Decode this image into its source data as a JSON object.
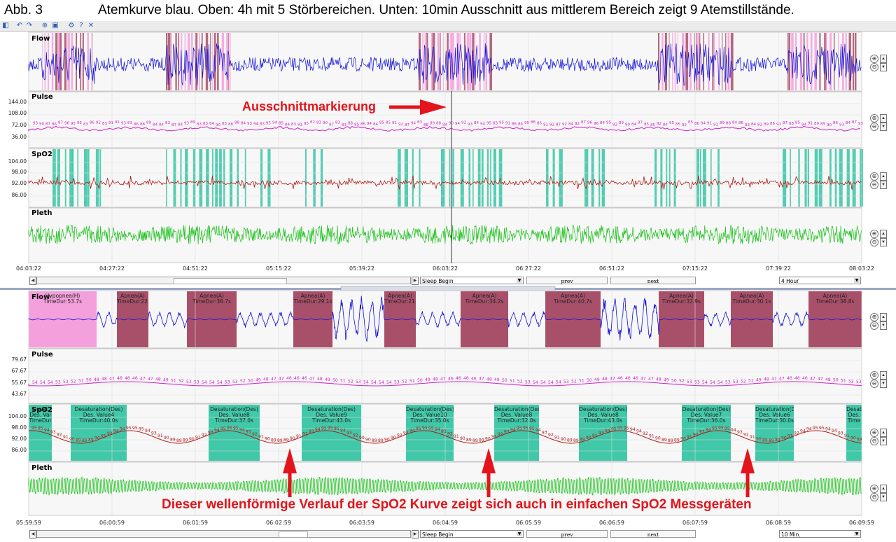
{
  "caption": {
    "fig": "Abb. 3",
    "text": "Atemkurve blau.  Oben: 4h mit 5 Störbereichen.   Unten: 10min Ausschnitt aus mittlerem Bereich zeigt 9 Atemstillstände."
  },
  "top_view": {
    "channels": {
      "flow": "Flow",
      "pulse": "Pulse",
      "spo2": "SpO2",
      "pleth": "Pleth"
    },
    "pulse_ticks": [
      "144.00",
      "108.00",
      "72.00",
      "36.00"
    ],
    "spo2_ticks": [
      "104.00",
      "98.00",
      "92.00",
      "86.00"
    ],
    "time_ticks": [
      "04:03:22",
      "04:27:22",
      "04:51:22",
      "05:15:22",
      "05:39:22",
      "06:03:22",
      "06:27:22",
      "06:51:22",
      "07:15:22",
      "07:39:22",
      "08:03:22"
    ],
    "nav": {
      "event_select": "Sleep Begin",
      "prev": "prev",
      "next": "next",
      "range_select": "4 Hour"
    },
    "marker_annotation": "Ausschnittmarkierung"
  },
  "bottom_view": {
    "channels": {
      "flow": "Flow",
      "pulse": "Pulse",
      "spo2": "SpO2",
      "pleth": "Pleth"
    },
    "pulse_ticks": [
      "79.67",
      "67.67",
      "55.67",
      "43.67"
    ],
    "spo2_ticks": [
      "104.00",
      "98.00",
      "92.00",
      "86.00"
    ],
    "time_ticks": [
      "05:59:59",
      "06:00:59",
      "06:01:59",
      "06:02:59",
      "06:03:59",
      "06:04:59",
      "06:05:59",
      "06:06:59",
      "06:07:59",
      "06:08:59",
      "06:09:59"
    ],
    "flow_events": [
      {
        "l1": "Hypopnea(H)",
        "l2": "TimeDur:53.7s"
      },
      {
        "l1": "Apnea(A)",
        "l2": "TimeDur:22."
      },
      {
        "l1": "Apnea(A)",
        "l2": "TimeDur:36.7s"
      },
      {
        "l1": "Apnea(A)",
        "l2": "TimeDur:29.1s"
      },
      {
        "l1": "Apnea(A)",
        "l2": "TimeDur:21."
      },
      {
        "l1": "Apnea(A)",
        "l2": "TimeDur:34.2s"
      },
      {
        "l1": "Apnea(A)",
        "l2": "TimeDur:40.7s"
      },
      {
        "l1": "Apnea(A)",
        "l2": "TimeDur:32.9s"
      },
      {
        "l1": "Apnea(A)",
        "l2": "TimeDur:30.1s"
      },
      {
        "l1": "Apnea(A)",
        "l2": "TimeDur:38.8s"
      }
    ],
    "spo2_events": [
      {
        "l1": "Desat",
        "l2": "Des. Val",
        "l3": "TimeDur"
      },
      {
        "l1": "Desaturation(Des)",
        "l2": "Des. Value4",
        "l3": "TimeDur:40.0s"
      },
      {
        "l1": "Desaturation(Des)",
        "l2": "Des. Value8",
        "l3": "TimeDur:37.0s"
      },
      {
        "l1": "Desaturation(Des)",
        "l2": "Des. Value9",
        "l3": "TimeDur:43.0s"
      },
      {
        "l1": "Desaturation(Des)",
        "l2": "Des. Value10",
        "l3": "TimeDur:35.0s"
      },
      {
        "l1": "Desaturation(Des)",
        "l2": "Des. Value8",
        "l3": "TimeDur:32.0s"
      },
      {
        "l1": "Desaturation(Des)",
        "l2": "Des. Value8",
        "l3": "TimeDur:43.0s"
      },
      {
        "l1": "Desaturation(Des)",
        "l2": "Des. Value7",
        "l3": "TimeDur:36.0s"
      },
      {
        "l1": "Desaturation(De",
        "l2": "Des. Value6",
        "l3": "TimeDur:30.0s"
      },
      {
        "l1": "Desat",
        "l2": "Des.",
        "l3": "Time"
      }
    ],
    "nav": {
      "event_select": "Sleep Begin",
      "prev": "prev",
      "next": "next",
      "range_select": "10 Min."
    },
    "wave_annotation": "Dieser wellenförmige Verlauf der SpO2 Kurve zeigt sich auch in einfachen SpO2 Messgeräten"
  },
  "colors": {
    "flow": "#1010d8",
    "pulse": "#d020c8",
    "spo2": "#b01818",
    "pleth": "#18c018",
    "apnea": "#a8506a",
    "hypopnea": "#f4a0dc",
    "desaturation": "#40c8a8",
    "annotation": "#e3141b"
  }
}
